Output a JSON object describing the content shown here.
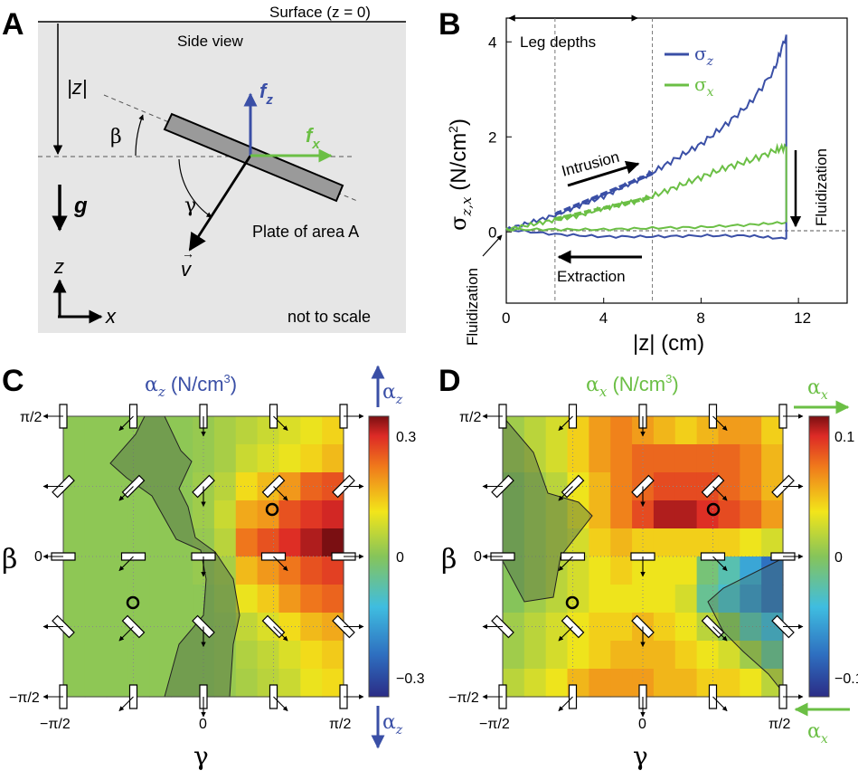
{
  "panels": {
    "a": "A",
    "b": "B",
    "c": "C",
    "d": "D"
  },
  "panel_a": {
    "surface": "Surface (z = 0)",
    "side_view": "Side view",
    "depth_label": "|z|",
    "beta": "β",
    "gamma": "γ",
    "fz": "f",
    "fz_sub": "z",
    "fx": "f",
    "fx_sub": "x",
    "gravity": "g",
    "plate": "Plate of area A",
    "velocity": "v",
    "axis_z": "z",
    "axis_x": "x",
    "scale_note": "not to scale"
  },
  "panel_b": {
    "leg_depths": "Leg depths",
    "legend_z": "σ",
    "legend_z_sub": "z",
    "legend_x": "σ",
    "legend_x_sub": "x",
    "ylabel": "σ",
    "ylabel_sub": "z,x",
    "ylabel_unit": " (N/cm",
    "ylabel_sup": "2",
    "ylabel_close": ")",
    "xlabel": "|z| (cm)",
    "intrusion": "Intrusion",
    "extraction": "Extraction",
    "fluidization": "Fluidization",
    "colors": {
      "z": "#3a4fa6",
      "x": "#6bbf45"
    }
  },
  "chart_data": [
    {
      "type": "line",
      "title": "",
      "xlabel": "|z| (cm)",
      "ylabel": "σz,x (N/cm2)",
      "xlim": [
        0,
        14
      ],
      "ylim": [
        -1.5,
        4.5
      ],
      "xticks": [
        "0",
        "4",
        "8",
        "12"
      ],
      "yticks": [
        "0",
        "2",
        "4"
      ],
      "leg_depth_lines_x": [
        2,
        6
      ],
      "series": [
        {
          "name": "σz intrusion",
          "x": [
            0,
            1,
            2,
            3,
            4,
            5,
            6,
            7,
            8,
            9,
            10,
            11,
            11.5
          ],
          "values": [
            0.05,
            0.2,
            0.35,
            0.55,
            0.75,
            1.0,
            1.25,
            1.55,
            1.85,
            2.25,
            2.7,
            3.4,
            4.15
          ]
        },
        {
          "name": "σz extraction",
          "x": [
            0,
            2,
            4,
            6,
            8,
            10,
            11.5
          ],
          "values": [
            0.05,
            -0.05,
            -0.1,
            -0.1,
            -0.08,
            -0.08,
            -0.15
          ]
        },
        {
          "name": "σx intrusion",
          "x": [
            0,
            1,
            2,
            3,
            4,
            5,
            6,
            7,
            8,
            9,
            10,
            11,
            11.5
          ],
          "values": [
            0.05,
            0.15,
            0.25,
            0.35,
            0.5,
            0.6,
            0.75,
            0.95,
            1.15,
            1.35,
            1.5,
            1.7,
            1.8
          ]
        },
        {
          "name": "σx extraction",
          "x": [
            0,
            2,
            4,
            6,
            8,
            10,
            11.5
          ],
          "values": [
            0.05,
            0.05,
            0.05,
            0.08,
            0.1,
            0.15,
            0.2
          ]
        }
      ]
    },
    {
      "type": "heatmap",
      "title": "αz (N/cm3)",
      "xlabel": "γ",
      "ylabel": "β",
      "x_range": [
        "-π/2",
        "π/2"
      ],
      "y_range": [
        "-π/2",
        "π/2"
      ],
      "clim": [
        -0.4,
        0.4
      ],
      "colorbar_ticks": [
        "0.3",
        "0",
        "−0.3"
      ],
      "rows_top_to_bottom": [
        [
          0.01,
          0.01,
          0.01,
          0.01,
          0.01,
          0.01,
          0.02,
          0.04,
          0.06,
          0.08,
          0.1,
          0.12,
          0.15
        ],
        [
          0.01,
          0.01,
          0.01,
          0.01,
          0.01,
          0.01,
          0.02,
          0.04,
          0.08,
          0.1,
          0.12,
          0.15,
          0.18
        ],
        [
          0.01,
          0.01,
          0.01,
          0.01,
          0.01,
          0.01,
          0.03,
          0.06,
          0.14,
          0.18,
          0.22,
          0.28,
          0.3
        ],
        [
          0.01,
          0.01,
          0.01,
          0.01,
          0.01,
          0.01,
          0.03,
          0.08,
          0.2,
          0.22,
          0.3,
          0.33,
          0.35
        ],
        [
          0.01,
          0.01,
          0.01,
          0.01,
          0.01,
          0.01,
          0.02,
          0.06,
          0.26,
          0.3,
          0.34,
          0.37,
          0.4
        ],
        [
          0.01,
          0.01,
          0.01,
          0.01,
          0.01,
          0.01,
          0.02,
          0.04,
          0.18,
          0.22,
          0.26,
          0.3,
          0.32
        ],
        [
          0.01,
          0.01,
          0.01,
          0.01,
          0.01,
          0.01,
          0.01,
          0.03,
          0.12,
          0.16,
          0.22,
          0.26,
          0.28
        ],
        [
          0.01,
          0.01,
          0.01,
          0.01,
          0.01,
          0.01,
          0.01,
          0.02,
          0.07,
          0.1,
          0.14,
          0.18,
          0.2
        ],
        [
          0.01,
          0.01,
          0.01,
          0.01,
          0.01,
          0.01,
          0.01,
          0.02,
          0.05,
          0.07,
          0.1,
          0.14,
          0.16
        ],
        [
          0.01,
          0.01,
          0.01,
          0.01,
          0.01,
          0.01,
          0.01,
          0.02,
          0.04,
          0.06,
          0.08,
          0.12,
          0.14
        ]
      ]
    },
    {
      "type": "heatmap",
      "title": "αx (N/cm3)",
      "xlabel": "γ",
      "ylabel": "β",
      "x_range": [
        "-π/2",
        "π/2"
      ],
      "y_range": [
        "-π/2",
        "π/2"
      ],
      "clim": [
        -0.13,
        0.13
      ],
      "colorbar_ticks": [
        "0.1",
        "0",
        "−0.1"
      ],
      "rows_top_to_bottom": [
        [
          0.01,
          0.02,
          0.03,
          0.05,
          0.07,
          0.08,
          0.07,
          0.06,
          0.05,
          0.06,
          0.07,
          0.07,
          0.05
        ],
        [
          0.01,
          0.02,
          0.03,
          0.05,
          0.07,
          0.08,
          0.09,
          0.09,
          0.09,
          0.09,
          0.09,
          0.08,
          0.06
        ],
        [
          0.0,
          0.01,
          0.02,
          0.04,
          0.06,
          0.08,
          0.09,
          0.1,
          0.1,
          0.1,
          0.09,
          0.08,
          0.06
        ],
        [
          0.0,
          0.01,
          0.02,
          0.04,
          0.06,
          0.08,
          0.1,
          0.12,
          0.12,
          0.11,
          0.1,
          0.09,
          0.07
        ],
        [
          0.0,
          0.01,
          0.02,
          0.03,
          0.05,
          0.06,
          0.05,
          0.05,
          0.05,
          0.05,
          0.05,
          0.04,
          0.03
        ],
        [
          0.0,
          0.01,
          0.02,
          0.03,
          0.04,
          0.05,
          0.04,
          0.04,
          0.04,
          -0.01,
          -0.03,
          -0.06,
          -0.09
        ],
        [
          0.0,
          0.01,
          0.02,
          0.03,
          0.04,
          0.04,
          0.04,
          0.04,
          0.03,
          -0.02,
          -0.04,
          -0.07,
          -0.09
        ],
        [
          0.01,
          0.02,
          0.03,
          0.04,
          0.05,
          0.05,
          0.06,
          0.05,
          0.04,
          0.02,
          0.0,
          -0.03,
          -0.05
        ],
        [
          0.01,
          0.02,
          0.03,
          0.04,
          0.05,
          0.06,
          0.06,
          0.06,
          0.05,
          0.04,
          0.03,
          0.01,
          -0.02
        ],
        [
          0.02,
          0.03,
          0.04,
          0.06,
          0.07,
          0.07,
          0.07,
          0.06,
          0.06,
          0.05,
          0.05,
          0.04,
          0.02
        ]
      ]
    }
  ],
  "panel_c": {
    "title": "α",
    "title_sub": "z",
    "title_unit": " (N/cm",
    "title_sup": "3",
    "title_close": ")",
    "arrow_label": "α",
    "arrow_sub": "z",
    "y_top": "π/2",
    "y_mid": "0",
    "y_bot": "−π/2",
    "x_left": "−π/2",
    "x_mid": "0",
    "x_right": "π/2",
    "xlabel": "γ",
    "ylabel": "β",
    "cbar_top": "0.3",
    "cbar_mid": "0",
    "cbar_bot": "−0.3"
  },
  "panel_d": {
    "title": "α",
    "title_sub": "x",
    "title_unit": " (N/cm",
    "title_sup": "3",
    "title_close": ")",
    "arrow_label": "α",
    "arrow_sub": "x",
    "y_top": "π/2",
    "y_mid": "0",
    "y_bot": "−π/2",
    "x_left": "−π/2",
    "x_mid": "0",
    "x_right": "π/2",
    "xlabel": "γ",
    "ylabel": "β",
    "cbar_top": "0.1",
    "cbar_mid": "0",
    "cbar_bot": "−0.1"
  }
}
